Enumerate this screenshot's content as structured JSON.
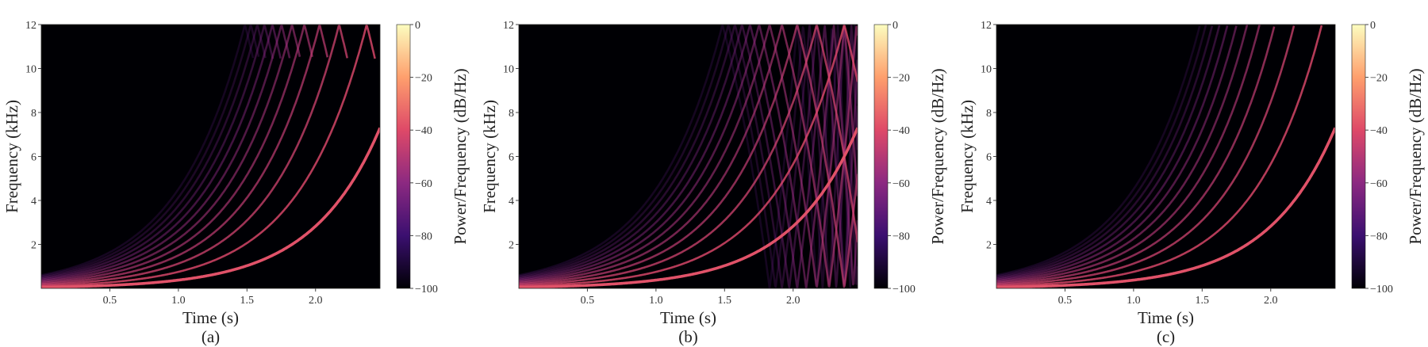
{
  "chart_data": [
    {
      "type": "spectrogram",
      "title": "(a)",
      "xlabel": "Time (s)",
      "ylabel": "Frequency (kHz)",
      "colorbar_label": "Power/Frequency (dB/Hz)",
      "xlim": [
        0,
        2.47
      ],
      "xticks": [
        0.5,
        {
          "value": 1,
          "label": "1.0"
        },
        1.5,
        {
          "value": 2,
          "label": "2.0"
        }
      ],
      "ylim": [
        0,
        12
      ],
      "yticks": [
        2,
        4,
        6,
        8,
        10,
        12
      ],
      "clim": [
        -100,
        0
      ],
      "cticks": [
        {
          "value": -100,
          "label": "−100"
        },
        {
          "value": -80,
          "label": "−80"
        },
        {
          "value": -60,
          "label": "−60"
        },
        {
          "value": -40,
          "label": "−40"
        },
        {
          "value": -20,
          "label": "−20"
        },
        0
      ],
      "colormap": "magma"
    },
    {
      "type": "spectrogram",
      "title": "(b)",
      "xlabel": "Time (s)",
      "ylabel": "Frequency (kHz)",
      "colorbar_label": "Power/Frequency (dB/Hz)",
      "xlim": [
        0,
        2.47
      ],
      "xticks": [
        0.5,
        {
          "value": 1,
          "label": "1.0"
        },
        1.5,
        {
          "value": 2,
          "label": "2.0"
        }
      ],
      "ylim": [
        0,
        12
      ],
      "yticks": [
        2,
        4,
        6,
        8,
        10,
        12
      ],
      "clim": [
        -100,
        0
      ],
      "cticks": [
        {
          "value": -100,
          "label": "−100"
        },
        {
          "value": -80,
          "label": "−80"
        },
        {
          "value": -60,
          "label": "−60"
        },
        {
          "value": -40,
          "label": "−40"
        },
        {
          "value": -20,
          "label": "−20"
        },
        0
      ],
      "colormap": "magma"
    },
    {
      "type": "spectrogram",
      "title": "(c)",
      "xlabel": "Time (s)",
      "ylabel": "Frequency (kHz)",
      "colorbar_label": "Power/Frequency (dB/Hz)",
      "xlim": [
        0,
        2.47
      ],
      "xticks": [
        0.5,
        {
          "value": 1,
          "label": "1.0"
        },
        1.5,
        {
          "value": 2,
          "label": "2.0"
        }
      ],
      "ylim": [
        0,
        12
      ],
      "yticks": [
        2,
        4,
        6,
        8,
        10,
        12
      ],
      "clim": [
        -100,
        0
      ],
      "cticks": [
        {
          "value": -100,
          "label": "−100"
        },
        {
          "value": -80,
          "label": "−80"
        },
        {
          "value": -60,
          "label": "−60"
        },
        {
          "value": -40,
          "label": "−40"
        },
        {
          "value": -20,
          "label": "−20"
        },
        0
      ],
      "colormap": "magma"
    }
  ]
}
